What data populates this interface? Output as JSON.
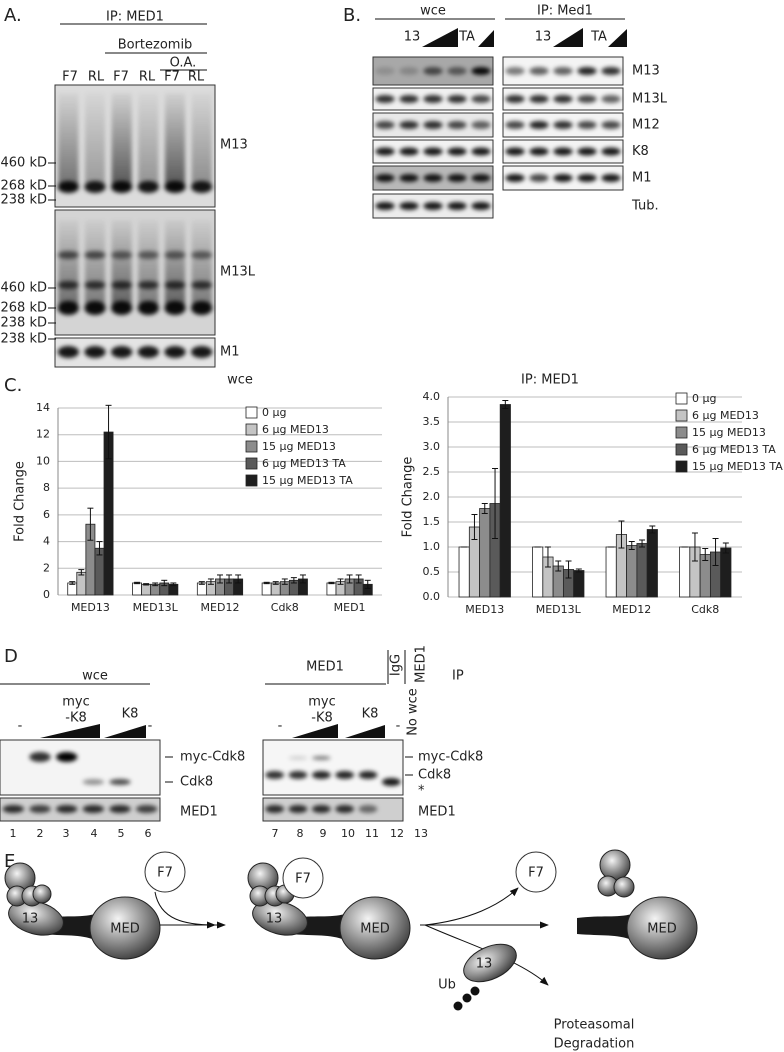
{
  "figure": {
    "panel_a": {
      "label": "A.",
      "ip": "IP: MED1",
      "treatment": "Bortezomib",
      "subtreatment": "O.A.",
      "lanes": [
        "F7",
        "RL",
        "F7",
        "RL",
        "F7",
        "RL"
      ],
      "markers": [
        "460 kD",
        "268 kD",
        "238 kD",
        "460 kD",
        "268 kD",
        "238 kD",
        "238 kD"
      ],
      "blots": [
        "M13",
        "M13L",
        "M1"
      ]
    },
    "panel_b": {
      "label": "B.",
      "groups": [
        "wce",
        "IP: Med1"
      ],
      "titrations": [
        "13",
        "TA",
        "13",
        "TA"
      ],
      "blots": [
        "M13",
        "M13L",
        "M12",
        "K8",
        "M1",
        "Tub."
      ]
    },
    "panel_c": {
      "label": "C."
    },
    "panel_d": {
      "label": "D",
      "wce": "wce",
      "ip_group": "MED1",
      "igg": "IgG",
      "no_wce": "No wce",
      "ip_col": "MED1",
      "ip": "IP",
      "treatments_left": [
        "-",
        "myc",
        "-K8",
        "K8",
        "-"
      ],
      "treatments_right": [
        "-",
        "myc",
        "-K8",
        "K8",
        "-"
      ],
      "blots_left": [
        "myc-Cdk8",
        "Cdk8",
        "MED1"
      ],
      "blots_right": [
        "myc-Cdk8",
        "Cdk8",
        "*",
        "MED1"
      ],
      "lanes": [
        "1",
        "2",
        "3",
        "4",
        "5",
        "6",
        "7",
        "8",
        "9",
        "10",
        "11",
        "12",
        "13"
      ]
    },
    "panel_e": {
      "label": "E.",
      "texts": [
        "F7",
        "13",
        "MED",
        "F7",
        "13",
        "MED",
        "F7",
        "MED",
        "13",
        "Ub",
        "Proteasomal",
        "Degradation"
      ]
    }
  },
  "chart_data": [
    {
      "type": "bar",
      "title": "wce",
      "y_label": "Fold Change",
      "categories": [
        "MED13",
        "MED13L",
        "MED12",
        "Cdk8",
        "MED1"
      ],
      "ylim": [
        0,
        14
      ],
      "yticks": [
        0,
        2,
        4,
        6,
        8,
        10,
        12,
        14
      ],
      "grid": true,
      "legend": "upper right",
      "series": [
        {
          "name": "0 µg",
          "color": "#ffffff",
          "values": [
            0.9,
            0.9,
            0.9,
            0.9,
            0.9
          ],
          "errors": [
            0.1,
            0.05,
            0.1,
            0.05,
            0.05
          ]
        },
        {
          "name": "6 µg MED13",
          "color": "#c4c4c4",
          "values": [
            1.7,
            0.8,
            1.0,
            0.9,
            1.0
          ],
          "errors": [
            0.2,
            0.05,
            0.2,
            0.1,
            0.2
          ]
        },
        {
          "name": "15 µg MED13",
          "color": "#8c8c8c",
          "values": [
            5.3,
            0.8,
            1.2,
            1.0,
            1.2
          ],
          "errors": [
            1.2,
            0.1,
            0.3,
            0.2,
            0.3
          ]
        },
        {
          "name": "6 µg MED13 TA",
          "color": "#5a5a5a",
          "values": [
            3.5,
            0.9,
            1.2,
            1.1,
            1.2
          ],
          "errors": [
            0.5,
            0.2,
            0.3,
            0.2,
            0.3
          ]
        },
        {
          "name": "15 µg MED13 TA",
          "color": "#1e1e1e",
          "values": [
            12.2,
            0.8,
            1.2,
            1.2,
            0.8
          ],
          "errors": [
            2.0,
            0.1,
            0.3,
            0.3,
            0.3
          ]
        }
      ]
    },
    {
      "type": "bar",
      "title": "IP: MED1",
      "y_label": "Fold Change",
      "categories": [
        "MED13",
        "MED13L",
        "MED12",
        "Cdk8"
      ],
      "ylim": [
        0,
        4
      ],
      "yticks": [
        {
          "value": 0,
          "label": "0.0"
        },
        {
          "value": 0.5,
          "label": "0.5"
        },
        {
          "value": 1,
          "label": "1.0"
        },
        {
          "value": 1.5,
          "label": "1.5"
        },
        {
          "value": 2,
          "label": "2.0"
        },
        {
          "value": 2.5,
          "label": "2.5"
        },
        {
          "value": 3,
          "label": "3.0"
        },
        {
          "value": 3.5,
          "label": "3.5"
        },
        {
          "value": 4,
          "label": "4.0"
        }
      ],
      "grid": true,
      "legend": "upper right",
      "series": [
        {
          "name": "0 µg",
          "color": "#ffffff",
          "values": [
            1,
            1,
            1,
            1
          ],
          "errors": [
            0,
            0,
            0,
            0
          ]
        },
        {
          "name": "6 µg MED13",
          "color": "#c4c4c4",
          "values": [
            1.4,
            0.8,
            1.25,
            1.0
          ],
          "errors": [
            0.25,
            0.2,
            0.27,
            0.28
          ]
        },
        {
          "name": "15 µg MED13",
          "color": "#8c8c8c",
          "values": [
            1.77,
            0.62,
            1.03,
            0.85
          ],
          "errors": [
            0.1,
            0.1,
            0.08,
            0.12
          ]
        },
        {
          "name": "6 µg MED13 TA",
          "color": "#5a5a5a",
          "values": [
            1.87,
            0.55,
            1.07,
            0.9
          ],
          "errors": [
            0.7,
            0.17,
            0.07,
            0.27
          ]
        },
        {
          "name": "15 µg MED13 TA",
          "color": "#1e1e1e",
          "values": [
            3.85,
            0.53,
            1.35,
            0.98
          ],
          "errors": [
            0.08,
            0.03,
            0.07,
            0.1
          ]
        }
      ]
    }
  ]
}
